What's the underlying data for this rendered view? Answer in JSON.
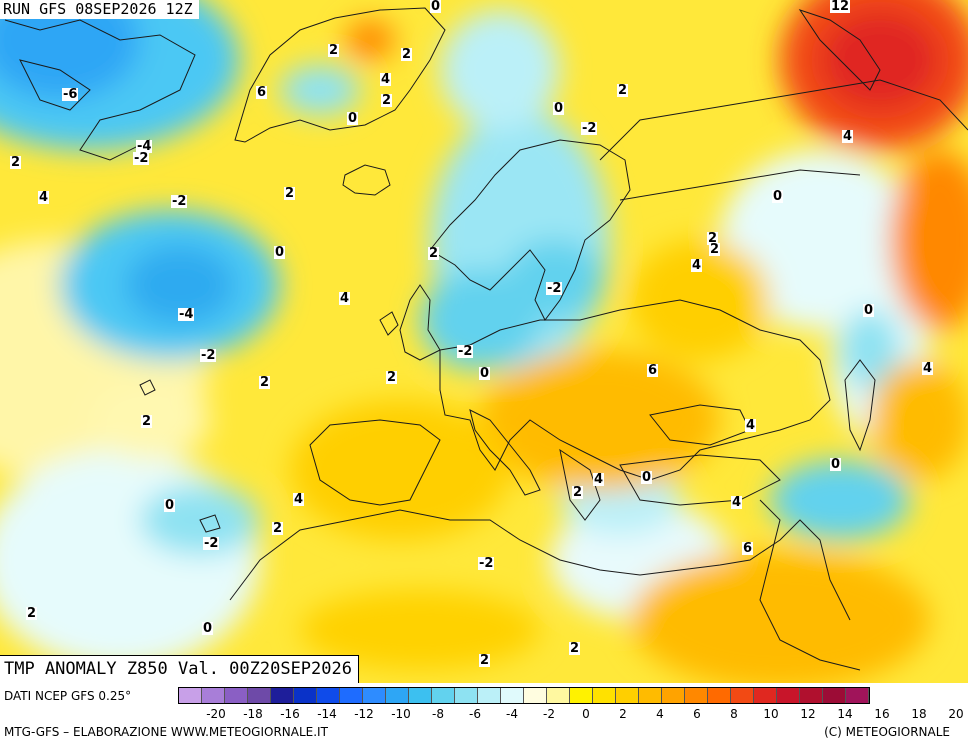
{
  "header": {
    "run_label": "RUN GFS 08SEP2026 12Z"
  },
  "map": {
    "variable_label": "TMP ANOMALY Z850 Val. 00Z20SEP2026",
    "isoline_labels": [
      "-6",
      "-4",
      "-2",
      "2",
      "6",
      "2",
      "4",
      "2",
      "0",
      "0",
      "2",
      "0",
      "-2",
      "2",
      "12",
      "4",
      "4",
      "2",
      "-2",
      "2",
      "0",
      "2",
      "2",
      "4",
      "-2",
      "-4",
      "4",
      "0",
      "-2",
      "2",
      "6",
      "2",
      "-2",
      "0",
      "4",
      "4",
      "0",
      "2",
      "4",
      "0",
      "4",
      "0",
      "2",
      "-2",
      "2",
      "6",
      "4",
      "2",
      "0",
      "2",
      "2",
      "0",
      "-2"
    ],
    "colors": {
      "land_outline": "#1a1a1a",
      "lakes": "#ffffff"
    }
  },
  "legend": {
    "source_label": "DATI NCEP GFS 0.25°",
    "scale_colors": [
      "#c8a0e8",
      "#a87ed8",
      "#8a5fc4",
      "#6e4aa8",
      "#1e1e9a",
      "#0a32c8",
      "#0f4bea",
      "#1e6cff",
      "#2e8cff",
      "#2ea6f5",
      "#3cc0f0",
      "#62d2ee",
      "#8ee2f2",
      "#bbf0f8",
      "#e0fafc",
      "#fffde0",
      "#fff8a0",
      "#fff200",
      "#ffe100",
      "#ffcf00",
      "#ffbb00",
      "#ffa300",
      "#ff8800",
      "#ff6a00",
      "#f24a14",
      "#e02820",
      "#c8152a",
      "#b0102e",
      "#9c0c36",
      "#a0145a"
    ],
    "scale_ticks": [
      "-20",
      "-18",
      "-16",
      "-14",
      "-12",
      "-10",
      "-8",
      "-6",
      "-4",
      "-2",
      "0",
      "2",
      "4",
      "6",
      "8",
      "10",
      "12",
      "14",
      "16",
      "18",
      "20"
    ],
    "footer_left": "MTG-GFS – ELABORAZIONE WWW.METEOGIORNALE.IT",
    "footer_right": "(C) METEOGIORNALE"
  }
}
